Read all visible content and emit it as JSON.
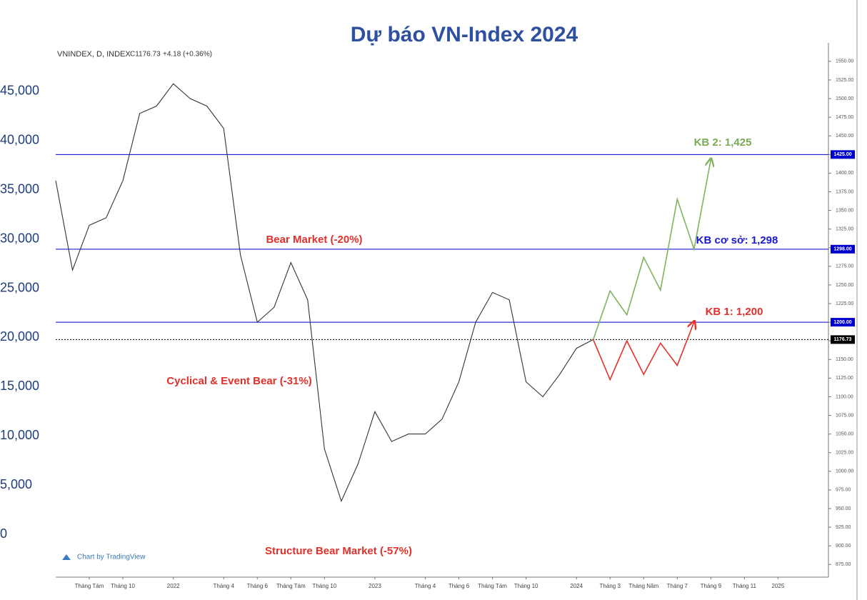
{
  "chart_data": {
    "type": "line",
    "title": "Dự báo VN-Index 2024",
    "header": {
      "symbol": "VNINDEX, D, INDEX",
      "close": "C1176.73",
      "change": "+4.18 (+0.36%)"
    },
    "watermark": "Chart by TradingView",
    "xlim": [
      "2021-06",
      "2025-04"
    ],
    "xticks": [
      {
        "value": "2021-08",
        "label": "Tháng Tám"
      },
      {
        "value": "2021-10",
        "label": "Tháng 10"
      },
      {
        "value": "2022-01",
        "label": "2022"
      },
      {
        "value": "2022-04",
        "label": "Tháng 4"
      },
      {
        "value": "2022-06",
        "label": "Tháng 6"
      },
      {
        "value": "2022-08",
        "label": "Tháng Tám"
      },
      {
        "value": "2022-10",
        "label": "Tháng 10"
      },
      {
        "value": "2023-01",
        "label": "2023"
      },
      {
        "value": "2023-04",
        "label": "Tháng 4"
      },
      {
        "value": "2023-06",
        "label": "Tháng 6"
      },
      {
        "value": "2023-08",
        "label": "Tháng Tám"
      },
      {
        "value": "2023-10",
        "label": "Tháng 10"
      },
      {
        "value": "2024-01",
        "label": "2024"
      },
      {
        "value": "2024-03",
        "label": "Tháng 3"
      },
      {
        "value": "2024-05",
        "label": "Tháng Năm"
      },
      {
        "value": "2024-07",
        "label": "Tháng 7"
      },
      {
        "value": "2024-09",
        "label": "Tháng 9"
      },
      {
        "value": "2024-11",
        "label": "Tháng 11"
      },
      {
        "value": "2025-01",
        "label": "2025"
      }
    ],
    "ylim": [
      858,
      1570
    ],
    "yticks": [
      {
        "value": 875,
        "label": "875.00"
      },
      {
        "value": 900,
        "label": "900.00"
      },
      {
        "value": 925,
        "label": "925.00"
      },
      {
        "value": 950,
        "label": "950.00"
      },
      {
        "value": 975,
        "label": "975.00"
      },
      {
        "value": 1000,
        "label": "1000.00"
      },
      {
        "value": 1025,
        "label": "1025.00"
      },
      {
        "value": 1050,
        "label": "1050.00"
      },
      {
        "value": 1075,
        "label": "1075.00"
      },
      {
        "value": 1100,
        "label": "1100.00"
      },
      {
        "value": 1125,
        "label": "1125.00"
      },
      {
        "value": 1150,
        "label": "1150.00"
      },
      {
        "value": 1175,
        "label": "1175.00"
      },
      {
        "value": 1200,
        "label": "1200.00"
      },
      {
        "value": 1225,
        "label": "1225.00"
      },
      {
        "value": 1250,
        "label": "1250.00"
      },
      {
        "value": 1275,
        "label": "1275.00"
      },
      {
        "value": 1300,
        "label": "1300.00"
      },
      {
        "value": 1325,
        "label": "1325.00"
      },
      {
        "value": 1350,
        "label": "1350.00"
      },
      {
        "value": 1375,
        "label": "1375.00"
      },
      {
        "value": 1400,
        "label": "1400.00"
      },
      {
        "value": 1425,
        "label": "1425.00"
      },
      {
        "value": 1450,
        "label": "1450.00"
      },
      {
        "value": 1475,
        "label": "1475.00"
      },
      {
        "value": 1500,
        "label": "1500.00"
      },
      {
        "value": 1525,
        "label": "1525.00"
      },
      {
        "value": 1550,
        "label": "1550.00"
      }
    ],
    "y2lim": [
      -4354,
      49572
    ],
    "y2ticks": [
      0,
      {
        "value": 5000,
        "label": "5,000"
      },
      {
        "value": 10000,
        "label": "10,000"
      },
      {
        "value": 15000,
        "label": "15,000"
      },
      {
        "value": 20000,
        "label": "20,000"
      },
      {
        "value": 25000,
        "label": "25,000"
      },
      {
        "value": 30000,
        "label": "30,000"
      },
      {
        "value": 35000,
        "label": "35,000"
      },
      {
        "value": 40000,
        "label": "40,000"
      },
      {
        "value": 45000,
        "label": "45,000"
      }
    ],
    "series": [
      {
        "name": "VNINDEX",
        "color": "#333333",
        "arrow": false,
        "x": [
          "2021-06",
          "2021-07",
          "2021-08",
          "2021-09",
          "2021-10",
          "2021-11",
          "2021-12",
          "2022-01",
          "2022-02",
          "2022-03",
          "2022-04",
          "2022-05",
          "2022-06",
          "2022-07",
          "2022-08",
          "2022-09",
          "2022-10",
          "2022-11",
          "2022-12",
          "2023-01",
          "2023-02",
          "2023-03",
          "2023-04",
          "2023-05",
          "2023-06",
          "2023-07",
          "2023-08",
          "2023-09",
          "2023-10",
          "2023-11",
          "2023-12",
          "2024-01",
          "2024-02"
        ],
        "values": [
          1390,
          1270,
          1330,
          1340,
          1390,
          1480,
          1490,
          1520,
          1500,
          1490,
          1460,
          1290,
          1200,
          1220,
          1280,
          1230,
          1030,
          960,
          1010,
          1080,
          1040,
          1050,
          1050,
          1070,
          1120,
          1200,
          1240,
          1230,
          1120,
          1100,
          1130,
          1165,
          1176.73
        ]
      },
      {
        "name": "KB 1",
        "color": "#e8302a",
        "arrow": true,
        "x": [
          "2024-02",
          "2024-03",
          "2024-04",
          "2024-05",
          "2024-06",
          "2024-07",
          "2024-08"
        ],
        "values": [
          1176.73,
          1123,
          1175,
          1130,
          1172,
          1142,
          1200
        ]
      },
      {
        "name": "KB 2",
        "color": "#7fb35e",
        "arrow": true,
        "x": [
          "2024-02",
          "2024-03",
          "2024-04",
          "2024-05",
          "2024-06",
          "2024-07",
          "2024-08",
          "2024-09"
        ],
        "values": [
          1176.73,
          1242,
          1210,
          1287,
          1243,
          1365,
          1298,
          1418
        ]
      }
    ],
    "hlines": [
      {
        "value": 1425,
        "label": "1425.00",
        "color": "#0000cc",
        "dash": false
      },
      {
        "value": 1298,
        "label": "1298.00",
        "color": "#0000cc",
        "dash": false
      },
      {
        "value": 1200,
        "label": "1200.00",
        "color": "#0000cc",
        "dash": false
      },
      {
        "value": 1176.73,
        "label": "1176.73",
        "color": "#000000",
        "dash": true
      }
    ],
    "annotations": [
      {
        "text": "KB 2: 1,425",
        "color": "#7aab55"
      },
      {
        "text": "KB cơ sở: 1,298",
        "color": "#1a1ad0"
      },
      {
        "text": "KB 1: 1,200",
        "color": "#e0302a"
      },
      {
        "text": "Bear Market (-20%)",
        "color": "#e0302a"
      },
      {
        "text": "Cyclical & Event Bear (-31%)",
        "color": "#e0302a"
      },
      {
        "text": "Structure Bear Market (-57%)",
        "color": "#e0302a"
      }
    ]
  }
}
